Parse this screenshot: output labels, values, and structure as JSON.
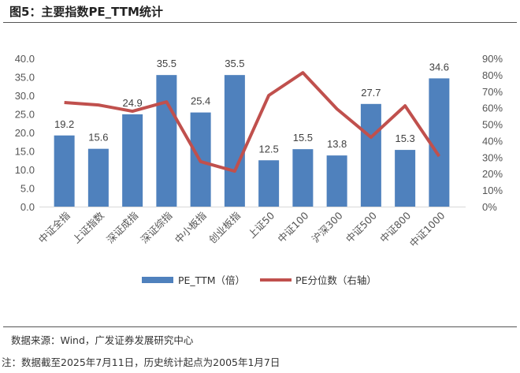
{
  "title": "图5：主要指数PE_TTM统计",
  "source": "数据来源：Wind，广发证券发展研究中心",
  "note": "注：数据截至2025年7月11日，历史统计起点为2005年1月7日",
  "colors": {
    "bar": "#4F81BD",
    "line": "#C0504D"
  },
  "chart_data": {
    "type": "bar+line",
    "categories": [
      "中证全指",
      "上证指数",
      "深证成指",
      "深证综指",
      "中小板指",
      "创业板指",
      "上证50",
      "中证100",
      "沪深300",
      "中证500",
      "中证800",
      "中证1000"
    ],
    "series": [
      {
        "name": "PE_TTM（倍）",
        "type": "bar",
        "axis": "left",
        "values": [
          19.2,
          15.6,
          24.9,
          35.5,
          25.4,
          35.5,
          12.5,
          15.5,
          13.8,
          27.7,
          15.3,
          34.6
        ]
      },
      {
        "name": "PE分位数（右轴）",
        "type": "line",
        "axis": "right",
        "values": [
          63.2,
          61.7,
          57.9,
          63.6,
          27.3,
          21.5,
          67.5,
          81.3,
          59.3,
          42.1,
          61.2,
          30.6
        ]
      }
    ],
    "y_left": {
      "range": [
        0,
        40
      ],
      "ticks": [
        "0.0",
        "5.0",
        "10.0",
        "15.0",
        "20.0",
        "25.0",
        "30.0",
        "35.0",
        "40.0"
      ]
    },
    "y_right": {
      "range": [
        0,
        90
      ],
      "ticks": [
        "0%",
        "10%",
        "20%",
        "30%",
        "40%",
        "50%",
        "60%",
        "70%",
        "80%",
        "90%"
      ]
    },
    "legend_position": "bottom",
    "grid": false
  }
}
